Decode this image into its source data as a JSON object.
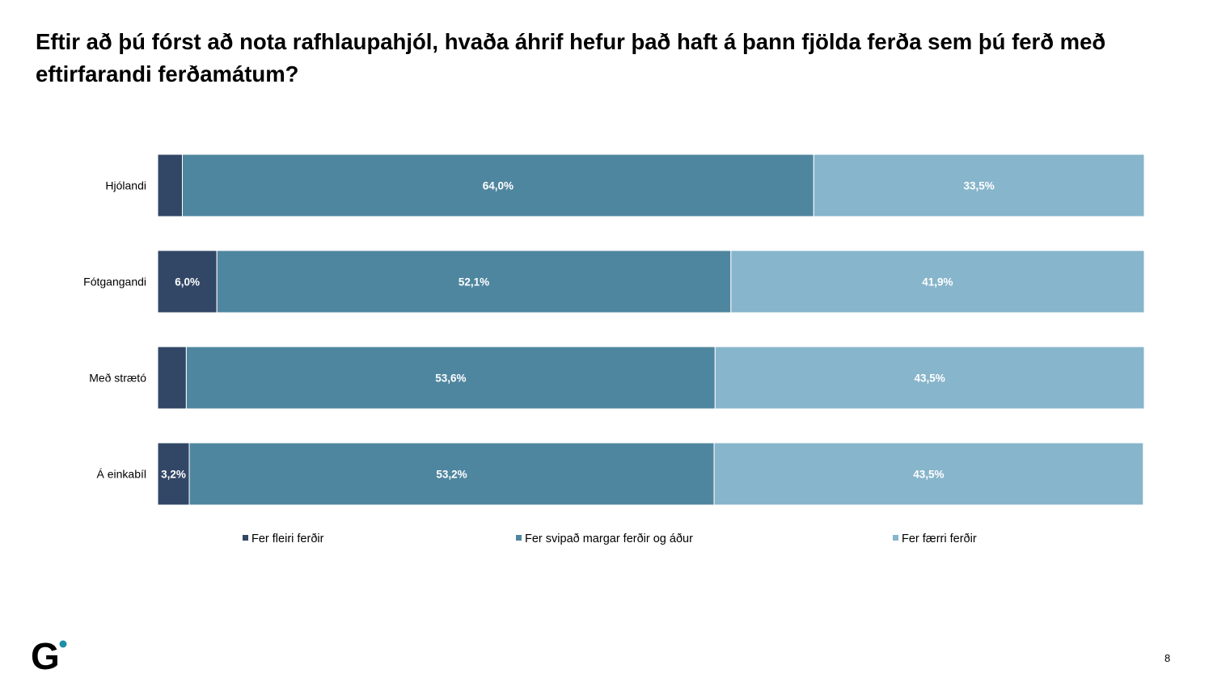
{
  "title": "Eftir að þú fórst að nota rafhlaupahjól, hvaða áhrif hefur það haft á þann fjölda ferða sem þú ferð með eftirfarandi ferðamátum?",
  "page_number": "8",
  "logo_text": "G",
  "chart_data": {
    "type": "bar",
    "orientation": "horizontal",
    "stacked": true,
    "percent": true,
    "categories": [
      "Hjólandi",
      "Fótgangandi",
      "Með strætó",
      "Á einkabíl"
    ],
    "series": [
      {
        "name": "Fer fleiri ferðir",
        "color": "#324766",
        "values": [
          2.5,
          6.0,
          2.9,
          3.2
        ],
        "labels": [
          "",
          "6,0%",
          "",
          "3,2%"
        ]
      },
      {
        "name": "Fer svipað margar ferðir og áður",
        "color": "#4F869F",
        "values": [
          64.0,
          52.1,
          53.6,
          53.2
        ],
        "labels": [
          "64,0%",
          "52,1%",
          "53,6%",
          "53,2%"
        ]
      },
      {
        "name": "Fer færri ferðir",
        "color": "#87B5CB",
        "values": [
          33.5,
          41.9,
          43.5,
          43.5
        ],
        "labels": [
          "33,5%",
          "41,9%",
          "43,5%",
          "43,5%"
        ]
      }
    ],
    "xlim": [
      0,
      100
    ],
    "grid": false,
    "legend": "bottom"
  }
}
